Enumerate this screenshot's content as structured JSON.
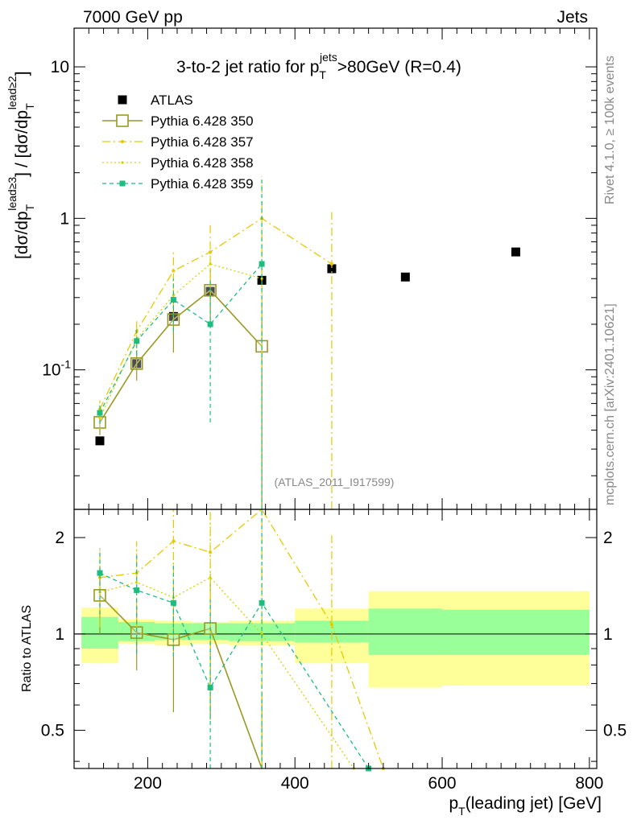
{
  "header": {
    "left": "7000 GeV pp",
    "right": "Jets"
  },
  "side_labels": {
    "rivet": "Rivet 4.1.0, ≥ 100k events",
    "mcplots": "mcplots.cern.ch [arXiv:2401.10621]"
  },
  "colors": {
    "atlas": "#000000",
    "p350": "#999922",
    "p357": "#E8C800",
    "p358": "#D4D400",
    "p359": "#1EBC80",
    "band_inner": "#99FF99",
    "band_outer": "#FFFF99"
  },
  "chart_data": [
    {
      "type": "scatter",
      "title": "3-to-2 jet ratio for p_T^jets >80GeV (R=0.4)",
      "title_parts": {
        "pre": "3-to-2 jet ratio for p",
        "sub": "T",
        "sup": "jets",
        "post": ">80GeV (R=0.4)"
      },
      "ylabel": "[dσ/dp_T^lead≥3] / [dσ/dp_T^lead≥2]",
      "ylabel_parts": {
        "a": "[dσ/dp",
        "sub": "T",
        "sup1": "lead≥3",
        "b": "] / [dσ/dp",
        "sup2": "lead≥2",
        "c": "]"
      },
      "xlabel": "",
      "yscale": "log",
      "xlim": [
        100,
        810
      ],
      "ylim": [
        0.012,
        18
      ],
      "ytick_labels": [
        "10",
        "1",
        "10^-1"
      ],
      "ytick_values": [
        10,
        1,
        0.1
      ],
      "analysis_label": "(ATLAS_2011_I917599)",
      "series": [
        {
          "name": "ATLAS",
          "x": [
            135,
            185,
            235,
            285,
            355,
            450,
            550,
            700
          ],
          "y": [
            0.034,
            0.11,
            0.225,
            0.33,
            0.39,
            0.465,
            0.41,
            0.6
          ]
        },
        {
          "name": "Pythia 6.428 350",
          "x": [
            135,
            185,
            235,
            285,
            355
          ],
          "y": [
            0.045,
            0.11,
            0.215,
            0.335,
            0.143
          ],
          "err_lo": [
            0.008,
            0.025,
            0.085,
            0.13,
            0.143
          ],
          "err_hi": [
            0.008,
            0.025,
            0.085,
            0.13,
            0.143
          ]
        },
        {
          "name": "Pythia 6.428 357",
          "x": [
            135,
            185,
            235,
            285,
            355,
            450
          ],
          "y": [
            0.055,
            0.18,
            0.45,
            0.6,
            1.0,
            0.5
          ],
          "err_lo": [
            0.008,
            0.035,
            0.15,
            0.3,
            0.9,
            0.5
          ],
          "err_hi": [
            0.008,
            0.035,
            0.15,
            0.3,
            0.9,
            0.6
          ]
        },
        {
          "name": "Pythia 6.428 358",
          "x": [
            135,
            185,
            235,
            285,
            355
          ],
          "y": [
            0.048,
            0.16,
            0.31,
            0.5,
            0.4
          ],
          "err_lo": [
            0.007,
            0.03,
            0.1,
            0.2,
            0.3
          ],
          "err_hi": [
            0.007,
            0.03,
            0.1,
            0.2,
            0.3
          ]
        },
        {
          "name": "Pythia 6.428 359",
          "x": [
            135,
            185,
            235,
            285,
            355
          ],
          "y": [
            0.052,
            0.155,
            0.29,
            0.2,
            0.5
          ],
          "err_lo": [
            0.008,
            0.03,
            0.11,
            0.155,
            0.5
          ],
          "err_hi": [
            0.008,
            0.03,
            0.11,
            0.2,
            1.3
          ]
        }
      ]
    },
    {
      "type": "scatter",
      "title": "",
      "ylabel": "Ratio to ATLAS",
      "xlabel": "p_T(leading jet) [GeV]",
      "xlabel_parts": {
        "pre": "p",
        "sub": "T",
        "post": "(leading jet) [GeV]"
      },
      "xlim": [
        100,
        810
      ],
      "ylim": [
        0.38,
        2.45
      ],
      "xtick_labels": [
        "200",
        "400",
        "600",
        "800"
      ],
      "xtick_values": [
        200,
        400,
        600,
        800
      ],
      "ytick_labels": [
        "2",
        "1",
        "0.5"
      ],
      "ytick_values": [
        2,
        1,
        0.5
      ],
      "bands": [
        {
          "x0": 110,
          "x1": 160,
          "inner": [
            0.9,
            1.13
          ],
          "outer": [
            0.81,
            1.21
          ]
        },
        {
          "x0": 160,
          "x1": 210,
          "inner": [
            0.95,
            1.09
          ],
          "outer": [
            0.93,
            1.11
          ]
        },
        {
          "x0": 210,
          "x1": 260,
          "inner": [
            0.96,
            1.08
          ],
          "outer": [
            0.92,
            1.1
          ]
        },
        {
          "x0": 260,
          "x1": 310,
          "inner": [
            0.96,
            1.08
          ],
          "outer": [
            0.93,
            1.09
          ]
        },
        {
          "x0": 310,
          "x1": 400,
          "inner": [
            0.95,
            1.08
          ],
          "outer": [
            0.92,
            1.1
          ]
        },
        {
          "x0": 400,
          "x1": 500,
          "inner": [
            0.94,
            1.1
          ],
          "outer": [
            0.81,
            1.2
          ]
        },
        {
          "x0": 500,
          "x1": 600,
          "inner": [
            0.86,
            1.2
          ],
          "outer": [
            0.68,
            1.36
          ]
        },
        {
          "x0": 600,
          "x1": 800,
          "inner": [
            0.86,
            1.19
          ],
          "outer": [
            0.69,
            1.36
          ]
        }
      ],
      "series": [
        {
          "name": "Pythia 6.428 350",
          "x": [
            135,
            185,
            235,
            285,
            355
          ],
          "y": [
            1.32,
            1.01,
            0.96,
            1.04,
            0.36
          ],
          "err_lo": [
            0.32,
            0.24,
            0.39,
            0.5,
            0.3
          ],
          "err_hi": [
            0.3,
            0.2,
            0.4,
            0.5,
            0.3
          ]
        },
        {
          "name": "Pythia 6.428 357",
          "x": [
            135,
            185,
            235,
            285,
            355,
            450,
            520
          ],
          "y": [
            1.5,
            1.55,
            1.95,
            1.8,
            2.55,
            1.07,
            0.38
          ],
          "err_lo": [
            0.45,
            0.5,
            0.6,
            1.0,
            2.3,
            1.0,
            0
          ],
          "err_hi": [
            0.35,
            0.4,
            0.6,
            1.0,
            0.2,
            1.0,
            0
          ]
        },
        {
          "name": "Pythia 6.428 358",
          "x": [
            135,
            185,
            235,
            285,
            355,
            480
          ],
          "y": [
            1.35,
            1.45,
            1.3,
            1.5,
            1.0,
            0.38
          ],
          "err_lo": [
            0.3,
            0.4,
            0.45,
            0.9,
            0.6,
            0
          ],
          "err_hi": [
            0.3,
            0.4,
            0.45,
            0.9,
            1.0,
            0
          ]
        },
        {
          "name": "Pythia 6.428 359",
          "x": [
            135,
            185,
            235,
            285,
            355,
            500
          ],
          "y": [
            1.55,
            1.37,
            1.25,
            0.68,
            1.25,
            0.38
          ],
          "err_lo": [
            0.4,
            0.5,
            0.4,
            0.5,
            1.0,
            0
          ],
          "err_hi": [
            0.3,
            0.4,
            0.4,
            0.6,
            1.2,
            0
          ]
        }
      ]
    }
  ]
}
